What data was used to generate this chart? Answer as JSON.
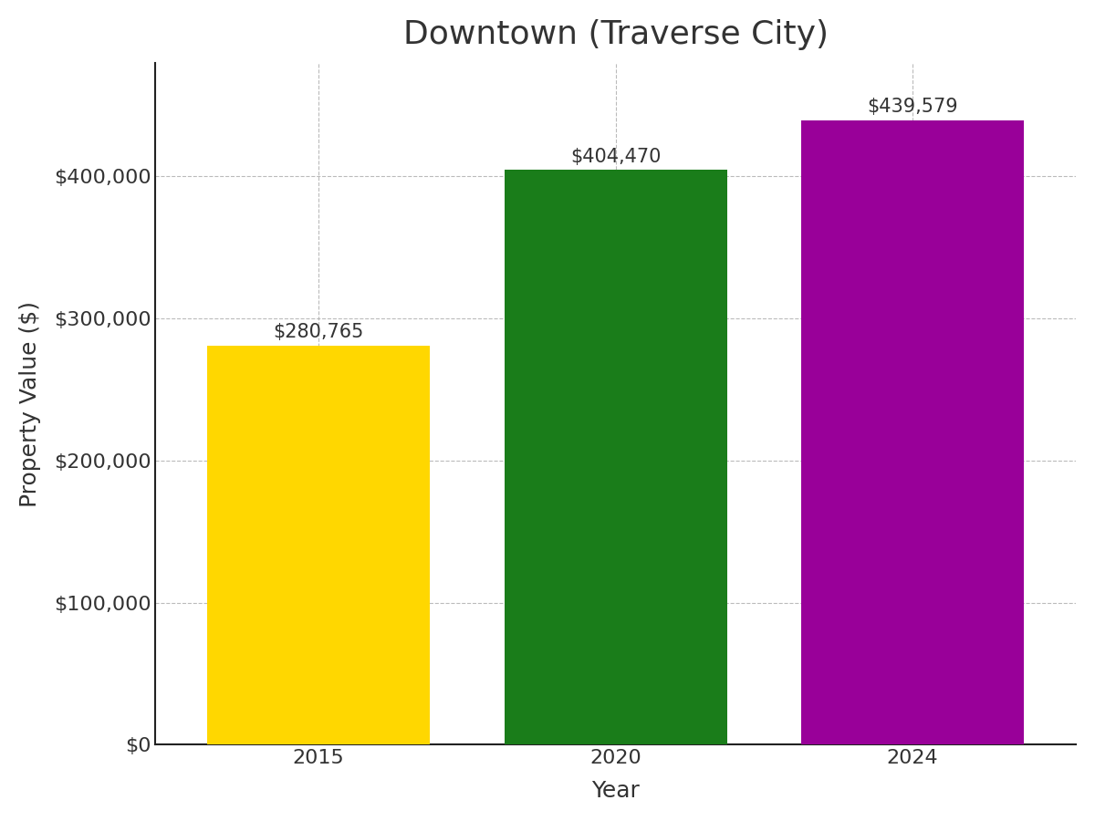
{
  "title": "Downtown (Traverse City)",
  "xlabel": "Year",
  "ylabel": "Property Value ($)",
  "categories": [
    "2015",
    "2020",
    "2024"
  ],
  "values": [
    280765,
    404470,
    439579
  ],
  "bar_colors": [
    "#FFD700",
    "#1a7d1a",
    "#990099"
  ],
  "bar_labels": [
    "$280,765",
    "$404,470",
    "$439,579"
  ],
  "ylim": [
    0,
    480000
  ],
  "yticks": [
    0,
    100000,
    200000,
    300000,
    400000
  ],
  "ytick_labels": [
    "$0",
    "$100,000",
    "$200,000",
    "$300,000",
    "$400,000"
  ],
  "title_fontsize": 26,
  "axis_label_fontsize": 18,
  "tick_fontsize": 16,
  "bar_label_fontsize": 15,
  "background_color": "#ffffff",
  "grid_color": "#aaaaaa",
  "bar_width": 0.75,
  "figsize": [
    12.0,
    9.0
  ],
  "dpi": 100
}
